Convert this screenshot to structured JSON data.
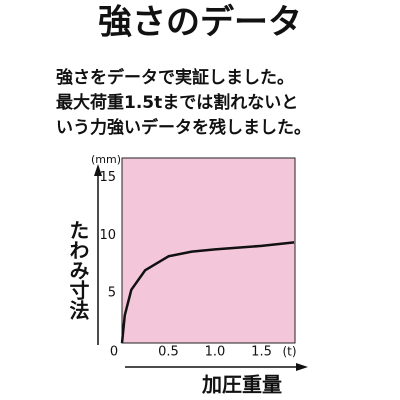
{
  "chart_data": {
    "type": "line",
    "title": "強さのデータ",
    "description": [
      "強さをデータで実証しました。",
      "最大荷重1.5tまでは割れないと",
      "いう力強いデータを残しました。"
    ],
    "y_label": "たわみ寸法",
    "y_unit": "(mm)",
    "x_label": "加圧重量",
    "x_unit": "(t)",
    "plot_color": "#f4c6da",
    "series": [
      {
        "color": "#111111",
        "x": [
          0,
          0.03,
          0.1,
          0.25,
          0.5,
          0.75,
          1.0,
          1.5,
          1.85
        ],
        "values": [
          0,
          2.4,
          4.6,
          6.3,
          7.5,
          7.9,
          8.1,
          8.4,
          8.7
        ]
      }
    ],
    "xlim": [
      0,
      1.86
    ],
    "ylim": [
      0,
      16
    ],
    "xticks": [
      0,
      0.5,
      {
        "value": 1,
        "label": "1.0"
      },
      1.5
    ],
    "yticks": [
      5,
      10,
      15
    ],
    "grid": false
  }
}
